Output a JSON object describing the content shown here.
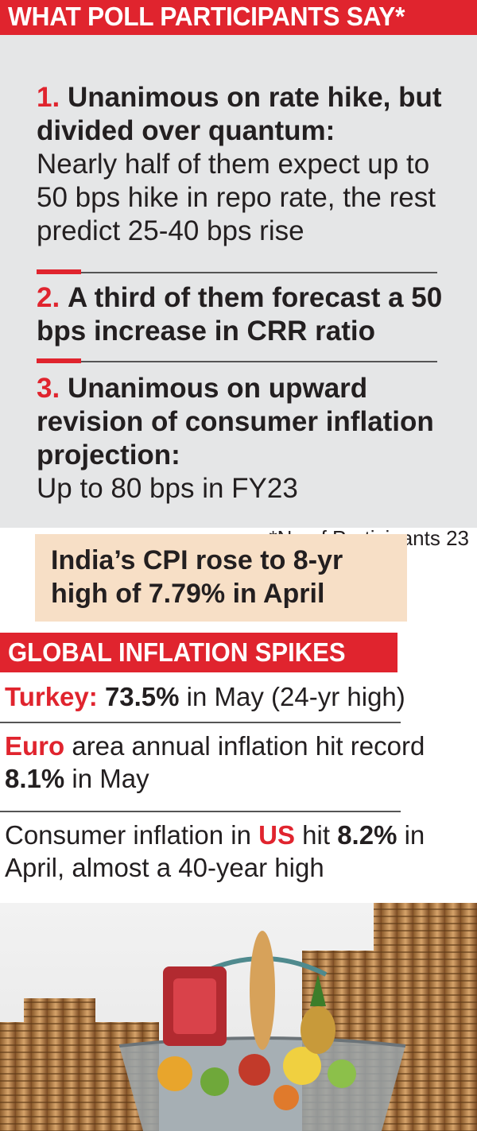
{
  "banner1": "WHAT POLL PARTICIPANTS SAY*",
  "poll_items": [
    {
      "num": "1.",
      "bold": "Unanimous on rate hike, but divided over quantum:",
      "text": "Nearly half of them expect up to 50 bps hike in repo rate, the rest predict 25-40 bps rise"
    },
    {
      "num": "2.",
      "bold": "A third of them forecast a 50 bps increase in CRR ratio",
      "text": ""
    },
    {
      "num": "3.",
      "bold": "Unanimous on upward revision of consumer inflation projection:",
      "text": "Up to 80 bps in FY23"
    }
  ],
  "footnote": "*No of Participants 23",
  "cpi_box": "India’s CPI rose to 8-yr high of 7.79% in April",
  "banner2": "GLOBAL INFLATION SPIKES",
  "inflation": {
    "turkey": {
      "label": "Turkey:",
      "value": "73.5%",
      "rest": " in May (24-yr high)"
    },
    "euro": {
      "label": "Euro",
      "pre": " area annual inflation hit record ",
      "value": "8.1%",
      "rest": " in May"
    },
    "us": {
      "pre": "Consumer inflation in ",
      "label": "US",
      "mid": " hit ",
      "value": "8.2%",
      "rest": " in April, almost a 40-year high"
    }
  },
  "colors": {
    "accent": "#e0242e",
    "panel": "#e5e6e7",
    "highlight": "#f7dfc6"
  },
  "photo": {
    "icon": "shopping-basket-with-coin-stacks"
  }
}
